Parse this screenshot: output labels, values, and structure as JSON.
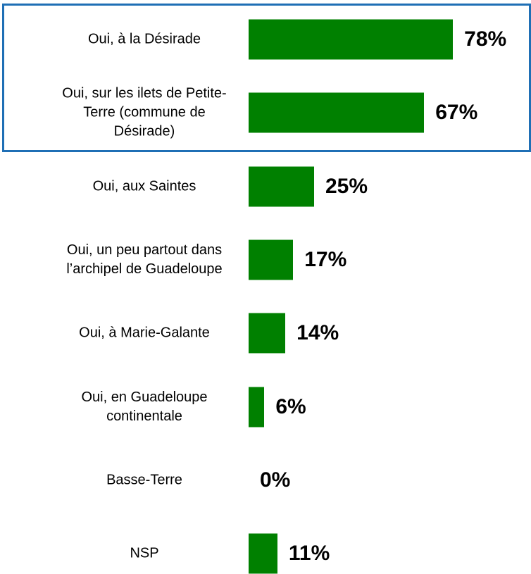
{
  "chart_data": {
    "type": "bar",
    "orientation": "horizontal",
    "categories": [
      "Oui, à la Désirade",
      "Oui, sur les ilets de Petite-Terre (commune de Désirade)",
      "Oui, aux Saintes",
      "Oui, un peu partout dans l’archipel de Guadeloupe",
      "Oui, à Marie-Galante",
      "Oui, en Guadeloupe continentale",
      "Basse-Terre",
      "NSP"
    ],
    "values": [
      78,
      67,
      25,
      17,
      14,
      6,
      0,
      11
    ],
    "value_labels": [
      "78%",
      "67%",
      "25%",
      "17%",
      "14%",
      "6%",
      "0%",
      "11%"
    ],
    "color": "#008000"
  }
}
